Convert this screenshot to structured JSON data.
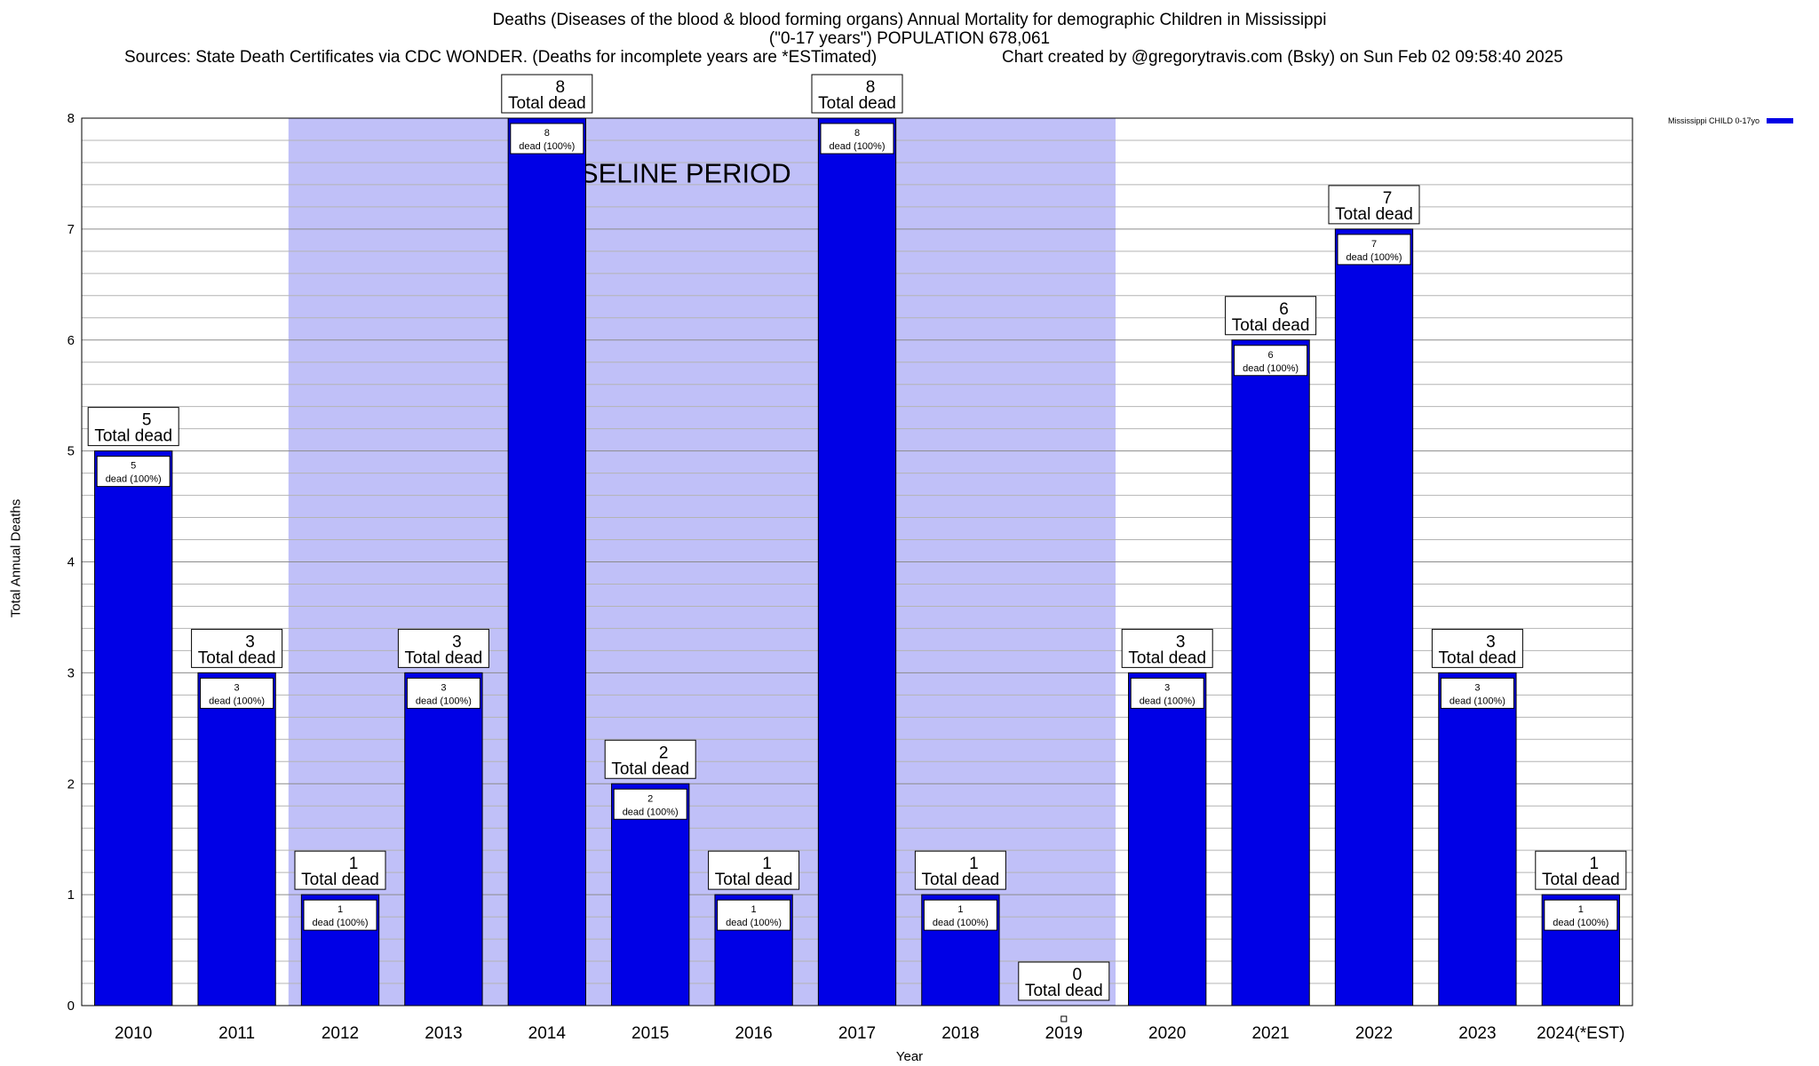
{
  "title_lines": [
    "Deaths (Diseases of the blood & blood forming organs) Annual Mortality for demographic Children in Mississippi",
    "(\"0-17 years\") POPULATION 678,061"
  ],
  "source_text": "Sources: State Death Certificates via CDC WONDER. (Deaths for incomplete years are *ESTimated)",
  "credit_text": "Chart created by @gregorytravis.com (Bsky) on Sun Feb 02 09:58:40 2025",
  "colors": {
    "bar": "#0000e6",
    "baseline_band": "#c0c0f8",
    "grid": "#b4b4b4"
  },
  "chart_data": {
    "type": "bar",
    "xlabel": "Year",
    "ylabel": "Total Annual Deaths",
    "ylim": [
      0,
      8
    ],
    "yticks": [
      "0",
      "1",
      "2",
      "3",
      "4",
      "5",
      "6",
      "7",
      "8"
    ],
    "grid": true,
    "categories": [
      "2010",
      "2011",
      "2012",
      "2013",
      "2014",
      "2015",
      "2016",
      "2017",
      "2018",
      "2019",
      "2020",
      "2021",
      "2022",
      "2023",
      "2024(*EST)"
    ],
    "series": [
      {
        "name": "Mississippi CHILD 0-17yo",
        "values": [
          5,
          3,
          1,
          3,
          8,
          2,
          1,
          8,
          1,
          0,
          3,
          6,
          7,
          3,
          1
        ]
      }
    ],
    "top_label_suffix": "Total dead",
    "inner_label_suffix": "dead (100%)",
    "baseline_period": {
      "label": "BASELINE PERIOD",
      "from": "2012",
      "to": "2019"
    },
    "legend_position": "top-right"
  }
}
